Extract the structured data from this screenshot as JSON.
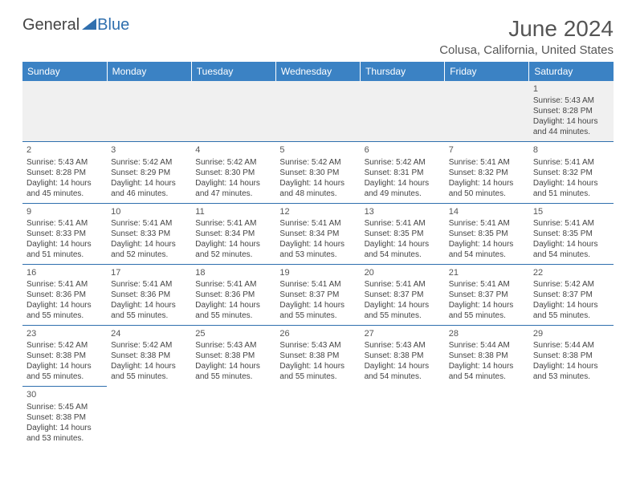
{
  "brand": {
    "part1": "General",
    "part2": "Blue"
  },
  "title": "June 2024",
  "location": "Colusa, California, United States",
  "colors": {
    "header_bg": "#3b82c4",
    "grid_line": "#2f6fae",
    "text": "#444444",
    "muted_bg": "#f0f0f0"
  },
  "weekdays": [
    "Sunday",
    "Monday",
    "Tuesday",
    "Wednesday",
    "Thursday",
    "Friday",
    "Saturday"
  ],
  "days": {
    "1": {
      "sunrise": "5:43 AM",
      "sunset": "8:28 PM",
      "daylight": "14 hours and 44 minutes."
    },
    "2": {
      "sunrise": "5:43 AM",
      "sunset": "8:28 PM",
      "daylight": "14 hours and 45 minutes."
    },
    "3": {
      "sunrise": "5:42 AM",
      "sunset": "8:29 PM",
      "daylight": "14 hours and 46 minutes."
    },
    "4": {
      "sunrise": "5:42 AM",
      "sunset": "8:30 PM",
      "daylight": "14 hours and 47 minutes."
    },
    "5": {
      "sunrise": "5:42 AM",
      "sunset": "8:30 PM",
      "daylight": "14 hours and 48 minutes."
    },
    "6": {
      "sunrise": "5:42 AM",
      "sunset": "8:31 PM",
      "daylight": "14 hours and 49 minutes."
    },
    "7": {
      "sunrise": "5:41 AM",
      "sunset": "8:32 PM",
      "daylight": "14 hours and 50 minutes."
    },
    "8": {
      "sunrise": "5:41 AM",
      "sunset": "8:32 PM",
      "daylight": "14 hours and 51 minutes."
    },
    "9": {
      "sunrise": "5:41 AM",
      "sunset": "8:33 PM",
      "daylight": "14 hours and 51 minutes."
    },
    "10": {
      "sunrise": "5:41 AM",
      "sunset": "8:33 PM",
      "daylight": "14 hours and 52 minutes."
    },
    "11": {
      "sunrise": "5:41 AM",
      "sunset": "8:34 PM",
      "daylight": "14 hours and 52 minutes."
    },
    "12": {
      "sunrise": "5:41 AM",
      "sunset": "8:34 PM",
      "daylight": "14 hours and 53 minutes."
    },
    "13": {
      "sunrise": "5:41 AM",
      "sunset": "8:35 PM",
      "daylight": "14 hours and 54 minutes."
    },
    "14": {
      "sunrise": "5:41 AM",
      "sunset": "8:35 PM",
      "daylight": "14 hours and 54 minutes."
    },
    "15": {
      "sunrise": "5:41 AM",
      "sunset": "8:35 PM",
      "daylight": "14 hours and 54 minutes."
    },
    "16": {
      "sunrise": "5:41 AM",
      "sunset": "8:36 PM",
      "daylight": "14 hours and 55 minutes."
    },
    "17": {
      "sunrise": "5:41 AM",
      "sunset": "8:36 PM",
      "daylight": "14 hours and 55 minutes."
    },
    "18": {
      "sunrise": "5:41 AM",
      "sunset": "8:36 PM",
      "daylight": "14 hours and 55 minutes."
    },
    "19": {
      "sunrise": "5:41 AM",
      "sunset": "8:37 PM",
      "daylight": "14 hours and 55 minutes."
    },
    "20": {
      "sunrise": "5:41 AM",
      "sunset": "8:37 PM",
      "daylight": "14 hours and 55 minutes."
    },
    "21": {
      "sunrise": "5:41 AM",
      "sunset": "8:37 PM",
      "daylight": "14 hours and 55 minutes."
    },
    "22": {
      "sunrise": "5:42 AM",
      "sunset": "8:37 PM",
      "daylight": "14 hours and 55 minutes."
    },
    "23": {
      "sunrise": "5:42 AM",
      "sunset": "8:38 PM",
      "daylight": "14 hours and 55 minutes."
    },
    "24": {
      "sunrise": "5:42 AM",
      "sunset": "8:38 PM",
      "daylight": "14 hours and 55 minutes."
    },
    "25": {
      "sunrise": "5:43 AM",
      "sunset": "8:38 PM",
      "daylight": "14 hours and 55 minutes."
    },
    "26": {
      "sunrise": "5:43 AM",
      "sunset": "8:38 PM",
      "daylight": "14 hours and 55 minutes."
    },
    "27": {
      "sunrise": "5:43 AM",
      "sunset": "8:38 PM",
      "daylight": "14 hours and 54 minutes."
    },
    "28": {
      "sunrise": "5:44 AM",
      "sunset": "8:38 PM",
      "daylight": "14 hours and 54 minutes."
    },
    "29": {
      "sunrise": "5:44 AM",
      "sunset": "8:38 PM",
      "daylight": "14 hours and 53 minutes."
    },
    "30": {
      "sunrise": "5:45 AM",
      "sunset": "8:38 PM",
      "daylight": "14 hours and 53 minutes."
    }
  },
  "layout": [
    [
      null,
      null,
      null,
      null,
      null,
      null,
      "1"
    ],
    [
      "2",
      "3",
      "4",
      "5",
      "6",
      "7",
      "8"
    ],
    [
      "9",
      "10",
      "11",
      "12",
      "13",
      "14",
      "15"
    ],
    [
      "16",
      "17",
      "18",
      "19",
      "20",
      "21",
      "22"
    ],
    [
      "23",
      "24",
      "25",
      "26",
      "27",
      "28",
      "29"
    ],
    [
      "30",
      null,
      null,
      null,
      null,
      null,
      null
    ]
  ],
  "labels": {
    "sunrise": "Sunrise: ",
    "sunset": "Sunset: ",
    "daylight": "Daylight: "
  }
}
